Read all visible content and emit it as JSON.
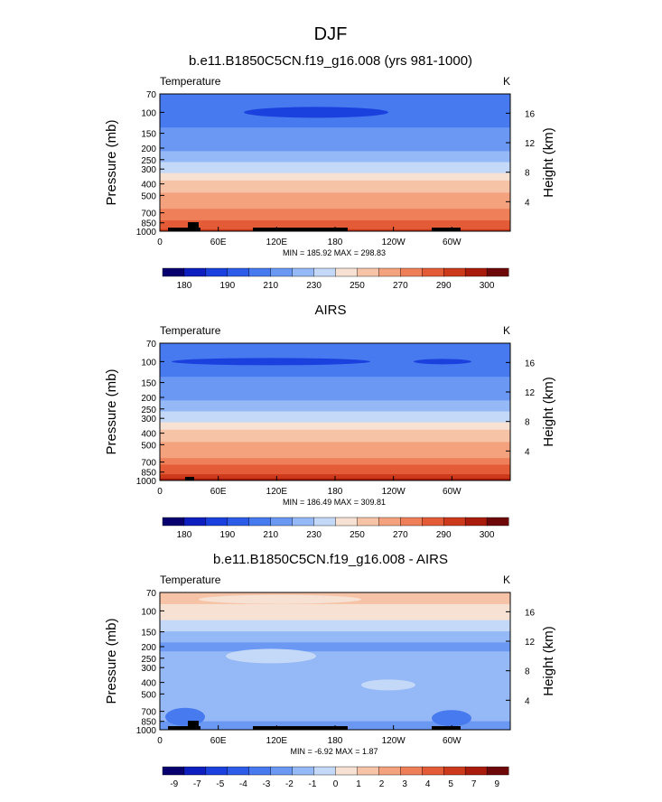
{
  "figure": {
    "title": "DJF"
  },
  "chart_data": [
    {
      "type": "heatmap",
      "title": "b.e11.B1850C5CN.f19_g16.008 (yrs 981-1000)",
      "left_label": "Temperature",
      "right_label": "K",
      "ylabel": "Pressure (mb)",
      "ylabel_right": "Height (km)",
      "x_ticks": [
        "0",
        "60E",
        "120E",
        "180",
        "120W",
        "60W"
      ],
      "y_ticks": [
        "70",
        "100",
        "150",
        "200",
        "250",
        "300",
        "400",
        "500",
        "700",
        "850",
        "1000"
      ],
      "y_right_ticks": [
        "16",
        "12",
        "8",
        "4"
      ],
      "stats": "MIN = 185.92  MAX = 298.83",
      "colorbar_labels": [
        "180",
        "190",
        "210",
        "230",
        "250",
        "270",
        "290",
        "300"
      ],
      "levels": [
        [
          70,
          209
        ],
        [
          85,
          205
        ],
        [
          100,
          200
        ],
        [
          120,
          205
        ],
        [
          150,
          210
        ],
        [
          175,
          214
        ],
        [
          200,
          218
        ],
        [
          225,
          222
        ],
        [
          250,
          226
        ],
        [
          275,
          231
        ],
        [
          300,
          236
        ],
        [
          350,
          243
        ],
        [
          400,
          250
        ],
        [
          450,
          256
        ],
        [
          500,
          261
        ],
        [
          600,
          268
        ],
        [
          700,
          274
        ],
        [
          775,
          279
        ],
        [
          850,
          284
        ],
        [
          925,
          289
        ],
        [
          1000,
          293
        ]
      ],
      "min_patch": true,
      "terrain": "model"
    },
    {
      "type": "heatmap",
      "title": "AIRS",
      "left_label": "Temperature",
      "right_label": "K",
      "ylabel": "Pressure (mb)",
      "ylabel_right": "Height (km)",
      "x_ticks": [
        "0",
        "60E",
        "120E",
        "180",
        "120W",
        "60W"
      ],
      "y_ticks": [
        "70",
        "100",
        "150",
        "200",
        "250",
        "300",
        "400",
        "500",
        "700",
        "850",
        "1000"
      ],
      "y_right_ticks": [
        "16",
        "12",
        "8",
        "4"
      ],
      "stats": "MIN = 186.49  MAX = 309.81",
      "colorbar_labels": [
        "180",
        "190",
        "210",
        "230",
        "250",
        "270",
        "290",
        "300"
      ],
      "levels": [
        [
          70,
          209
        ],
        [
          85,
          204
        ],
        [
          100,
          201
        ],
        [
          120,
          205
        ],
        [
          150,
          210
        ],
        [
          175,
          214
        ],
        [
          200,
          218
        ],
        [
          225,
          222
        ],
        [
          250,
          226
        ],
        [
          275,
          231
        ],
        [
          300,
          236
        ],
        [
          350,
          243
        ],
        [
          400,
          250
        ],
        [
          450,
          256
        ],
        [
          500,
          262
        ],
        [
          600,
          269
        ],
        [
          700,
          275
        ],
        [
          775,
          280
        ],
        [
          850,
          285
        ],
        [
          925,
          290
        ],
        [
          1000,
          296
        ]
      ],
      "min_patch": false,
      "terrain": "obs"
    },
    {
      "type": "heatmap",
      "title": "b.e11.B1850C5CN.f19_g16.008 - AIRS",
      "left_label": "Temperature",
      "right_label": "K",
      "ylabel": "Pressure (mb)",
      "ylabel_right": "Height (km)",
      "x_ticks": [
        "0",
        "60E",
        "120E",
        "180",
        "120W",
        "60W"
      ],
      "y_ticks": [
        "70",
        "100",
        "150",
        "200",
        "250",
        "300",
        "400",
        "500",
        "700",
        "850",
        "1000"
      ],
      "y_right_ticks": [
        "16",
        "12",
        "8",
        "4"
      ],
      "stats": "MIN =  -6.92  MAX =   1.87",
      "colorbar_labels": [
        "-9",
        "-7",
        "-5",
        "-4",
        "-3",
        "-2",
        "-1",
        "0",
        "1",
        "2",
        "3",
        "4",
        "5",
        "7",
        "9"
      ],
      "diff_bands": [
        [
          70,
          0.5
        ],
        [
          110,
          0.2
        ],
        [
          130,
          -1.0
        ],
        [
          170,
          -1.8
        ],
        [
          200,
          -2.5
        ],
        [
          240,
          -2.0
        ],
        [
          300,
          -1.8
        ],
        [
          400,
          -1.6
        ],
        [
          500,
          -1.6
        ],
        [
          650,
          -1.8
        ],
        [
          800,
          -2.0
        ],
        [
          900,
          -2.2
        ],
        [
          1000,
          -2.6
        ]
      ],
      "terrain": "model"
    }
  ]
}
